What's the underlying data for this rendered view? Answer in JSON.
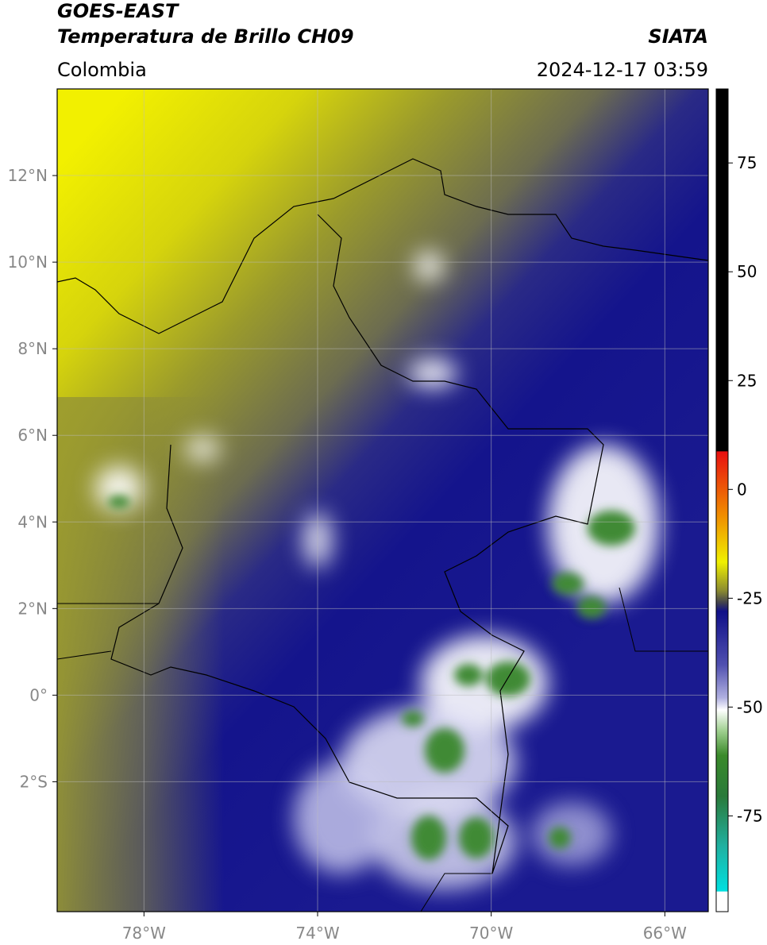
{
  "header": {
    "title": "GOES-EAST",
    "subtitle": "Temperatura de Brillo CH09",
    "source": "SIATA",
    "region": "Colombia",
    "datetime": "2024-12-17 03:59"
  },
  "map": {
    "xlim": [
      -80,
      -65
    ],
    "ylim": [
      -5,
      14
    ],
    "grid": true,
    "xticks": [
      {
        "value": -78,
        "label": "78°W"
      },
      {
        "value": -74,
        "label": "74°W"
      },
      {
        "value": -70,
        "label": "70°W"
      },
      {
        "value": -66,
        "label": "66°W"
      }
    ],
    "yticks": [
      {
        "value": 12,
        "label": "12°N"
      },
      {
        "value": 10,
        "label": "10°N"
      },
      {
        "value": 8,
        "label": "8°N"
      },
      {
        "value": 6,
        "label": "6°N"
      },
      {
        "value": 4,
        "label": "4°N"
      },
      {
        "value": 2,
        "label": "2°N"
      },
      {
        "value": 0,
        "label": "0°"
      },
      {
        "value": -2,
        "label": "2°S"
      }
    ]
  },
  "colorbar": {
    "lim": [
      -97,
      92
    ],
    "ticks": [
      75,
      50,
      25,
      0,
      -25,
      -50,
      -75
    ]
  }
}
